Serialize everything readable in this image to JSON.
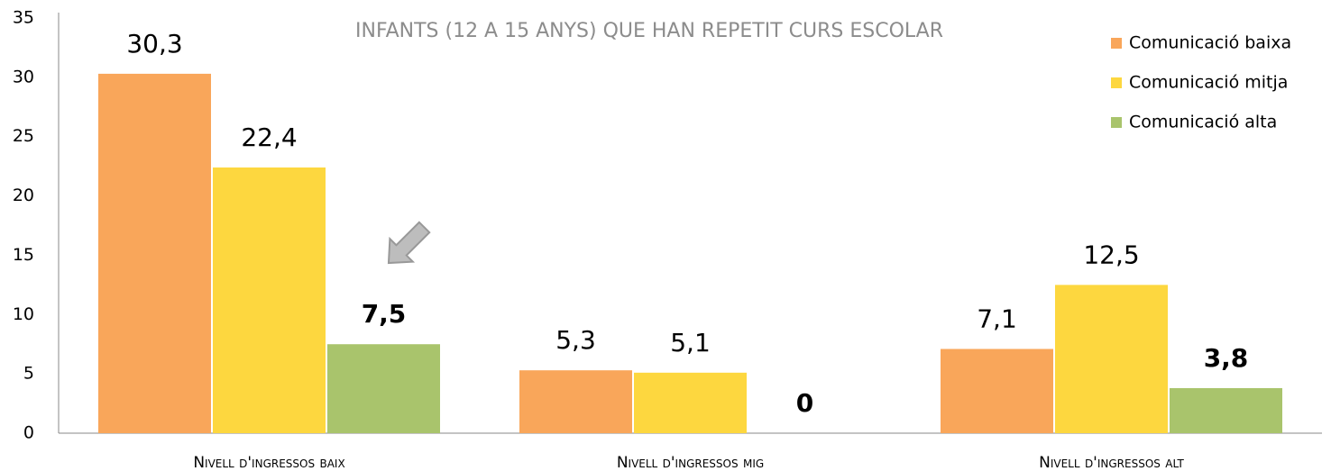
{
  "chart_data": {
    "type": "bar",
    "title": "INFANTS (12 A 15 ANYS) QUE HAN REPETIT CURS ESCOLAR",
    "categories": [
      "Nivell d'ingressos baix",
      "Nivell d'ingressos mig",
      "Nivell d'ingressos alt"
    ],
    "series": [
      {
        "name": "Comunicació baixa",
        "color": "#f9a65a",
        "values": [
          30.3,
          5.3,
          7.1
        ],
        "value_labels": [
          "30,3",
          "5,3",
          "7,1"
        ],
        "label_bold": false
      },
      {
        "name": "Comunicació mitja",
        "color": "#fdd73f",
        "values": [
          22.4,
          5.1,
          12.5
        ],
        "value_labels": [
          "22,4",
          "5,1",
          "12,5"
        ],
        "label_bold": false
      },
      {
        "name": "Comunicació alta",
        "color": "#a9c46c",
        "values": [
          7.5,
          0,
          3.8
        ],
        "value_labels": [
          "7,5",
          "0",
          "3,8"
        ],
        "label_bold": true
      }
    ],
    "ylim": [
      0,
      35
    ],
    "yticks": [
      0,
      5,
      10,
      15,
      20,
      25,
      30,
      35
    ],
    "grid": false,
    "legend": "top-right"
  }
}
